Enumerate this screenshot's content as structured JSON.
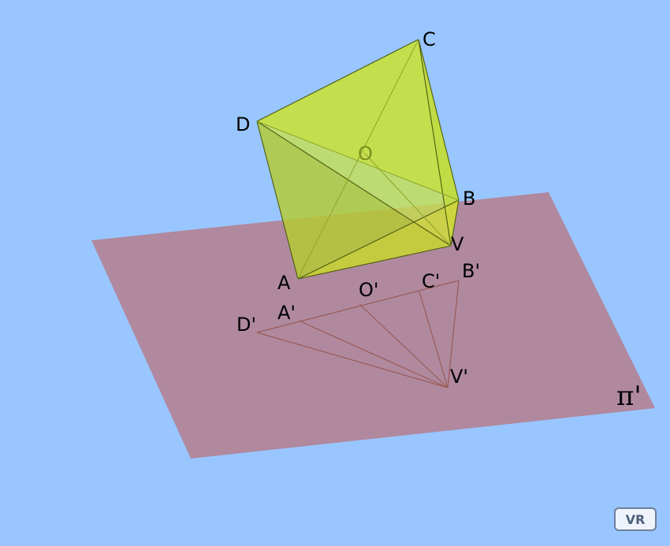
{
  "scene": {
    "colors": {
      "background": "#99c6ff",
      "plane": "#b0899f",
      "solid_fill": "#c2dd3a",
      "solid_edge": "#4d5b10",
      "projection_line": "#9a5a55"
    },
    "plane_label": "π'",
    "vertex_labels": {
      "C": "C",
      "D": "D",
      "O": "O",
      "B": "B",
      "V": "V",
      "A": "A",
      "A_proj": "A'",
      "O_proj": "O'",
      "C_proj": "C'",
      "B_proj": "B'",
      "D_proj": "D'",
      "V_proj": "V'"
    }
  },
  "controls": {
    "vr_label": "VR"
  }
}
